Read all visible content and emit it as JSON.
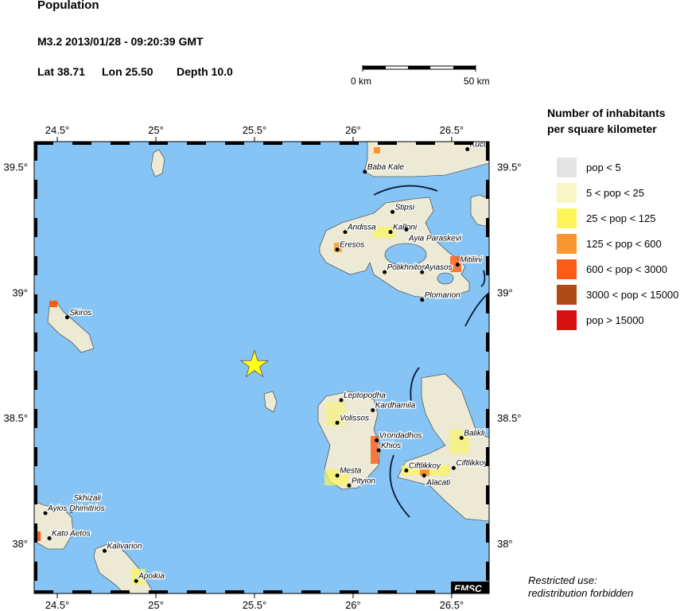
{
  "header": {
    "title": "Population",
    "event": "M3.2  2013/01/28 - 09:20:39 GMT",
    "lat_label": "Lat 38.71",
    "lon_label": "Lon  25.50",
    "depth_label": "Depth  10.0"
  },
  "scale_bar": {
    "start_label": "0 km",
    "end_label": "50 km"
  },
  "map": {
    "lon_range": [
      24.383,
      26.69
    ],
    "lat_range": [
      37.8,
      39.6
    ],
    "lon_ticks": [
      "24.5°",
      "25°",
      "25.5°",
      "26°",
      "26.5°"
    ],
    "lon_tick_values": [
      24.5,
      25,
      25.5,
      26,
      26.5
    ],
    "lat_ticks": [
      "39.5°",
      "39°",
      "38.5°",
      "38°"
    ],
    "lat_tick_values": [
      39.5,
      39,
      38.5,
      38
    ],
    "sea_color": "#86c4f6",
    "epicenter": {
      "lon": 25.5,
      "lat": 38.71,
      "icon": "star-icon",
      "color": "#ffff1a"
    },
    "cities": [
      {
        "name": "Kucu",
        "lon": 26.58,
        "lat": 39.57
      },
      {
        "name": "Baba Kale",
        "lon": 26.06,
        "lat": 39.48
      },
      {
        "name": "Stipsi",
        "lon": 26.2,
        "lat": 39.32
      },
      {
        "name": "Andissa",
        "lon": 25.96,
        "lat": 39.24
      },
      {
        "name": "Kalloni",
        "lon": 26.19,
        "lat": 39.24
      },
      {
        "name": "Ayia Paraskevi",
        "lon": 26.27,
        "lat": 39.25
      },
      {
        "name": "Eresos",
        "lon": 25.92,
        "lat": 39.17
      },
      {
        "name": "Polikhnitos",
        "lon": 26.16,
        "lat": 39.08
      },
      {
        "name": "Ayiasos",
        "lon": 26.35,
        "lat": 39.08
      },
      {
        "name": "Mitilini",
        "lon": 26.53,
        "lat": 39.11
      },
      {
        "name": "Plomarion",
        "lon": 26.35,
        "lat": 38.97
      },
      {
        "name": "Skiros",
        "lon": 24.55,
        "lat": 38.9
      },
      {
        "name": "Leptopodha",
        "lon": 25.94,
        "lat": 38.57
      },
      {
        "name": "Kardhamila",
        "lon": 26.1,
        "lat": 38.53
      },
      {
        "name": "Volissos",
        "lon": 25.92,
        "lat": 38.48
      },
      {
        "name": "Vrondadhos",
        "lon": 26.12,
        "lat": 38.41
      },
      {
        "name": "Khios",
        "lon": 26.13,
        "lat": 38.37
      },
      {
        "name": "Mesta",
        "lon": 25.92,
        "lat": 38.27
      },
      {
        "name": "Pityion",
        "lon": 25.98,
        "lat": 38.23
      },
      {
        "name": "Ciftlikkoy",
        "lon": 26.27,
        "lat": 38.29
      },
      {
        "name": "Alacati",
        "lon": 26.36,
        "lat": 38.27
      },
      {
        "name": "Ciftlikkoy",
        "lon": 26.51,
        "lat": 38.3
      },
      {
        "name": "Balikli",
        "lon": 26.55,
        "lat": 38.42
      },
      {
        "name": "Skhizali",
        "lon": 24.57,
        "lat": 38.13
      },
      {
        "name": "Ayios Dhimitrios",
        "lon": 24.44,
        "lat": 38.12
      },
      {
        "name": "Kato Aetos",
        "lon": 24.46,
        "lat": 38.02
      },
      {
        "name": "Kalivarion",
        "lon": 24.74,
        "lat": 37.97
      },
      {
        "name": "Apoikia",
        "lon": 24.9,
        "lat": 37.85
      }
    ],
    "logo": "EMSC"
  },
  "legend": {
    "title_line1": "Number of inhabitants",
    "title_line2": "per square kilometer",
    "items": [
      {
        "label": "pop < 5",
        "color": "#e3e3e3"
      },
      {
        "label": "5 < pop < 25",
        "color": "#f8f6c7"
      },
      {
        "label": "25 < pop < 125",
        "color": "#fbf55a"
      },
      {
        "label": "125 < pop < 600",
        "color": "#f99630"
      },
      {
        "label": "600 < pop < 3000",
        "color": "#fb5a17"
      },
      {
        "label": "3000 < pop < 15000",
        "color": "#b14b15"
      },
      {
        "label": "pop > 15000",
        "color": "#d81010"
      }
    ]
  },
  "footer": {
    "line1": "Restricted use:",
    "line2": "redistribution forbidden"
  }
}
